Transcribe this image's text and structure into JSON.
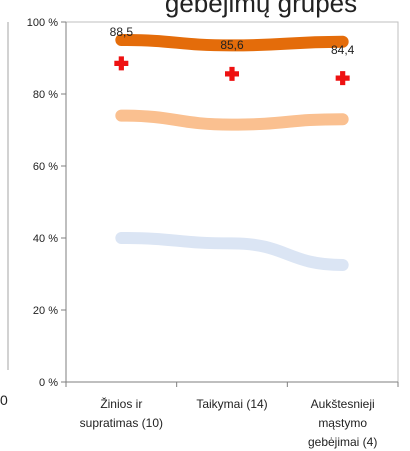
{
  "chart_data": {
    "type": "line",
    "title_fragment": "gebėjimų grupės",
    "categories": [
      "Žinios ir supratimas (10)",
      "Taikymai (14)",
      "Aukštesnieji mąstymo gebėjimai (4)"
    ],
    "category_lines": [
      [
        "Žinios ir",
        "supratimas (10)"
      ],
      [
        "Taikymai (14)"
      ],
      [
        "Aukštesnieji",
        "mąstymo",
        "gebėjimai (4)"
      ]
    ],
    "ylim": [
      0,
      100
    ],
    "yticks": [
      0,
      20,
      40,
      60,
      80,
      100
    ],
    "ytick_labels": [
      "0 %",
      "20 %",
      "40 %",
      "60 %",
      "80 %",
      "100 %"
    ],
    "series": [
      {
        "values": [
          95,
          93.5,
          94.5
        ],
        "color": "#e46c0a"
      },
      {
        "values": [
          74,
          71.5,
          73
        ],
        "color": "#fac090"
      },
      {
        "values": [
          40,
          38.5,
          32.5
        ],
        "color": "#dbe5f4"
      }
    ],
    "markers": {
      "values": [
        88.5,
        85.6,
        84.4
      ],
      "labels": [
        "88,5",
        "85,6",
        "84,4"
      ],
      "color": "#ee1111"
    },
    "left_edge_fragment": "0"
  }
}
